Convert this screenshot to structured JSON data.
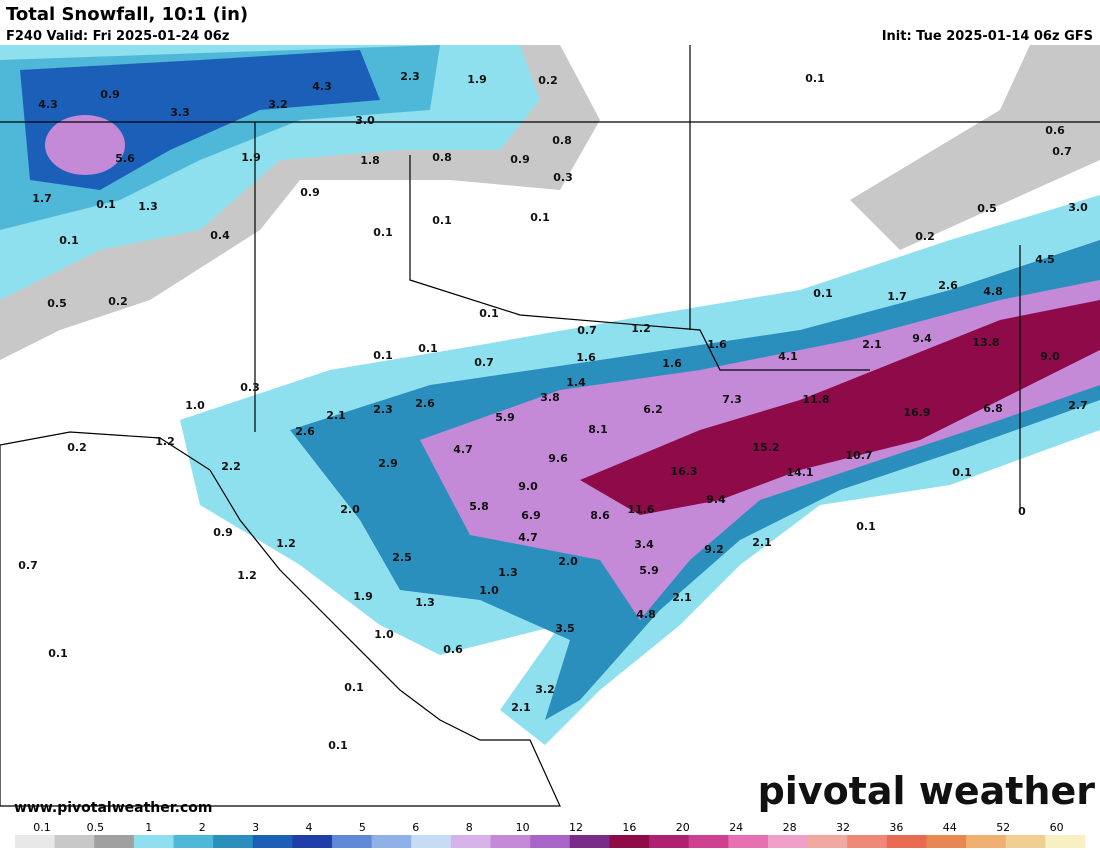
{
  "header": {
    "title": "Total Snowfall, 10:1 (in)",
    "valid": "F240 Valid: Fri 2025-01-24 06z",
    "init": "Init: Tue 2025-01-14 06z GFS"
  },
  "map": {
    "labels": [
      "4.3",
      "0.9",
      "3.3",
      "3.2",
      "4.3",
      "2.3",
      "1.9",
      "0.2",
      "0.1",
      "5.6",
      "3.0",
      "1.9",
      "1.8",
      "0.8",
      "0.9",
      "0.8",
      "0.6",
      "0.7",
      "1.7",
      "0.1",
      "1.3",
      "0.9",
      "0.3",
      "0.1",
      "0.1",
      "0.1",
      "0.4",
      "0.1",
      "0.5",
      "3.0",
      "0.2",
      "0.2",
      "0.5",
      "4.5",
      "2.6",
      "4.8",
      "0.1",
      "1.7",
      "0.1",
      "0.7",
      "1.2",
      "1.6",
      "9.4",
      "13.8",
      "2.1",
      "0.1",
      "0.1",
      "0.7",
      "1.6",
      "1.6",
      "4.1",
      "9.0",
      "0.3",
      "1.4",
      "3.8",
      "7.3",
      "11.8",
      "6.8",
      "2.7",
      "16.9",
      "1.0",
      "2.6",
      "2.3",
      "2.1",
      "5.9",
      "6.2",
      "2.6",
      "8.1",
      "1.2",
      "0.2",
      "4.7",
      "15.2",
      "2.9",
      "9.6",
      "10.7",
      "2.2",
      "16.3",
      "14.1",
      "0.1",
      "9.0",
      "9.4",
      "5.8",
      "2.0",
      "11.6",
      "6.9",
      "8.6",
      "0.9",
      "0.1",
      "4.7",
      "1.2",
      "3.4",
      "9.2",
      "2.1",
      "2.5",
      "2.0",
      "0.7",
      "5.9",
      "1.3",
      "1.2",
      "1.0",
      "2.1",
      "1.9",
      "1.3",
      "4.8",
      "3.5",
      "1.0",
      "0.6",
      "0.1",
      "0.1",
      "3.2",
      "2.1",
      "0.1",
      "0"
    ]
  },
  "legend": {
    "ticks": [
      "0.1",
      "0.5",
      "1",
      "2",
      "3",
      "4",
      "5",
      "6",
      "8",
      "10",
      "12",
      "16",
      "20",
      "24",
      "28",
      "32",
      "36",
      "44",
      "52",
      "60"
    ],
    "colors": [
      "#e8e8e8",
      "#c8c8c8",
      "#a0a0a0",
      "#8ee0ee",
      "#4fb8d8",
      "#2a8fbd",
      "#1c5fb8",
      "#1e3fa8",
      "#5e8ad8",
      "#8eb2e8",
      "#c6dcf2",
      "#d6b2e8",
      "#c48ad8",
      "#a864c8",
      "#7a2a8a",
      "#8e0a48",
      "#b02070",
      "#d04090",
      "#e670b0",
      "#f0a0c8",
      "#f0a8a0",
      "#f08878",
      "#e86a50",
      "#e88850",
      "#f0b070",
      "#f0d090",
      "#f8f0c0"
    ]
  },
  "footer": {
    "site": "www.pivotalweather.com",
    "brand": "pivotal weather"
  }
}
